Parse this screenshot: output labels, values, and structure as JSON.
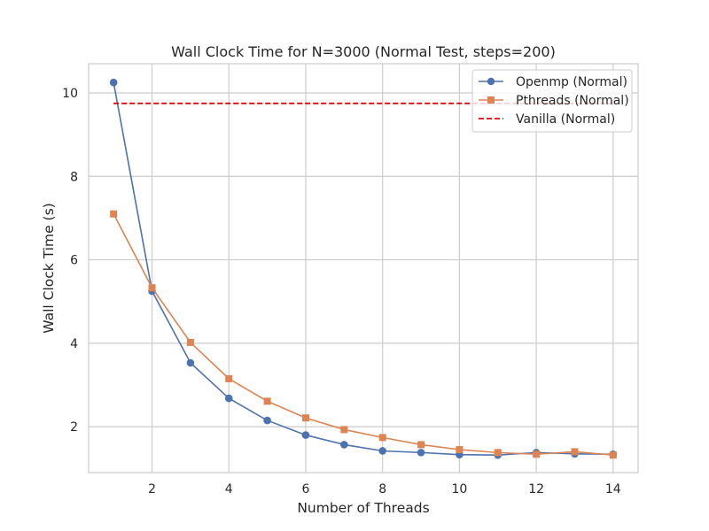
{
  "chart_data": {
    "type": "line",
    "title": "Wall Clock Time for N=3000 (Normal Test, steps=200)",
    "xlabel": "Number of Threads",
    "ylabel": "Wall Clock Time (s)",
    "xlim": [
      0.35,
      14.65
    ],
    "ylim": [
      0.9,
      10.7
    ],
    "xticks": [
      2,
      4,
      6,
      8,
      10,
      12,
      14
    ],
    "yticks": [
      2,
      4,
      6,
      8,
      10
    ],
    "grid": true,
    "legend_position": "top-right",
    "x": [
      1,
      2,
      3,
      4,
      5,
      6,
      7,
      8,
      9,
      10,
      11,
      12,
      13,
      14
    ],
    "series": [
      {
        "name": "Openmp (Normal)",
        "color": "#4c72b0",
        "marker": "circle",
        "linestyle": "solid",
        "values": [
          10.25,
          5.25,
          3.53,
          2.68,
          2.15,
          1.8,
          1.57,
          1.42,
          1.38,
          1.33,
          1.32,
          1.38,
          1.35,
          1.34
        ]
      },
      {
        "name": "Pthreads (Normal)",
        "color": "#dd8452",
        "marker": "square",
        "linestyle": "solid",
        "values": [
          7.1,
          5.33,
          4.02,
          3.15,
          2.61,
          2.21,
          1.93,
          1.74,
          1.57,
          1.45,
          1.38,
          1.34,
          1.4,
          1.32
        ]
      },
      {
        "name": "Vanilla (Normal)",
        "color": "#e8000b",
        "marker": "none",
        "linestyle": "dashed",
        "values": [
          9.75,
          9.75,
          9.75,
          9.75,
          9.75,
          9.75,
          9.75,
          9.75,
          9.75,
          9.75,
          9.75,
          9.75,
          9.75,
          9.75
        ]
      }
    ]
  }
}
